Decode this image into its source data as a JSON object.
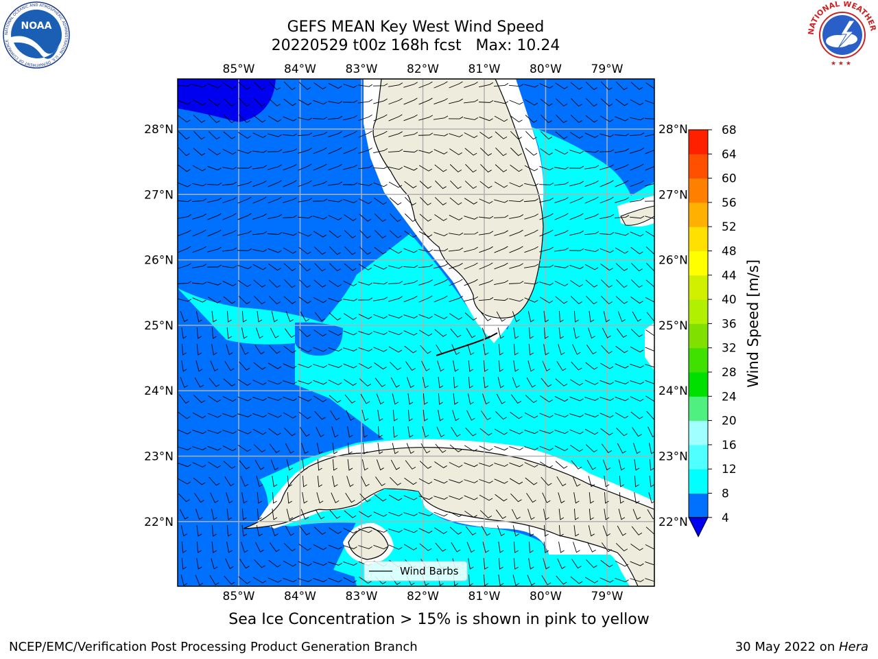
{
  "title": {
    "line1": "GEFS MEAN Key West Wind Speed",
    "line2": "20220529 t00z 168h fcst   Max: 10.24"
  },
  "logos": {
    "left": {
      "name": "noaa-logo",
      "text": "NOAA",
      "ring": "NATIONAL OCEANIC AND ATMOSPHERIC ADMINISTRATION · U.S. DEPARTMENT OF COMMERCE"
    },
    "right": {
      "name": "nws-logo",
      "ring": "NATIONAL WEATHER SERVICE"
    }
  },
  "map": {
    "lon_ticks": [
      "85°W",
      "84°W",
      "83°W",
      "82°W",
      "81°W",
      "80°W",
      "79°W"
    ],
    "lat_ticks": [
      "28°N",
      "27°N",
      "26°N",
      "25°N",
      "24°N",
      "23°N",
      "22°N"
    ],
    "legend_label": "Wind Barbs",
    "colors": {
      "land": "#eeecdc",
      "ocean_4_8": "#0070ff",
      "ocean_below_4": "#0000f0",
      "ocean_8_12": "#00ffff",
      "grid": "#b0b0b0"
    }
  },
  "colorbar": {
    "label": "Wind Speed [m/s]",
    "ticks": [
      "4",
      "8",
      "12",
      "16",
      "20",
      "24",
      "28",
      "32",
      "36",
      "40",
      "44",
      "48",
      "52",
      "56",
      "60",
      "64",
      "68"
    ],
    "colors": [
      "#0070ff",
      "#00ffff",
      "#50ffff",
      "#a0ffff",
      "#50f080",
      "#00e000",
      "#40e000",
      "#80e000",
      "#b0f000",
      "#d0f000",
      "#ffff00",
      "#ffe000",
      "#ffb000",
      "#ff8000",
      "#ff5000",
      "#ff2000"
    ],
    "under_color": "#0000f0"
  },
  "caption": "Sea Ice Concentration > 15% is shown in pink to yellow",
  "footer": {
    "left": "NCEP/EMC/Verification Post Processing Product Generation Branch",
    "date": "30 May 2022 on ",
    "host": "Hera"
  }
}
